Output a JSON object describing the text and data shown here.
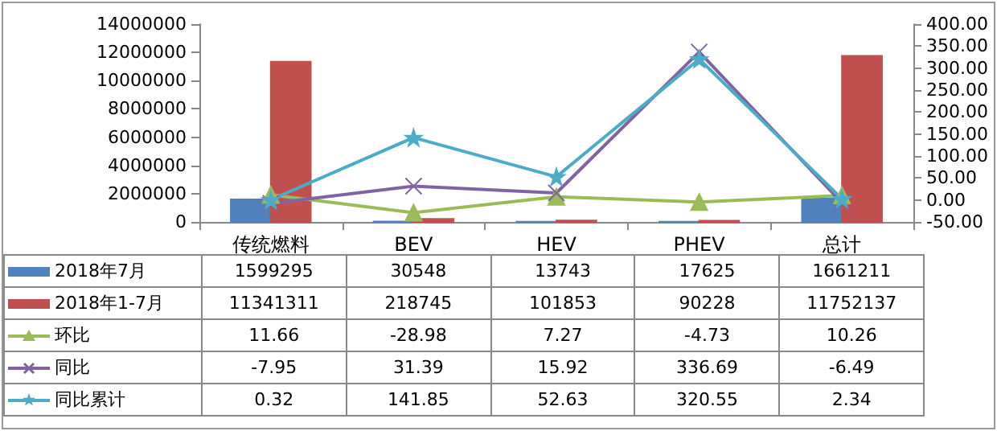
{
  "chart_data": {
    "type": "bar",
    "categories": [
      "传统燃料",
      "BEV",
      "HEV",
      "PHEV",
      "总计"
    ],
    "series": [
      {
        "name": "2018年7月",
        "color": "#4f81bd",
        "values": [
          1599295,
          30548,
          13743,
          17625,
          1661211
        ]
      },
      {
        "name": "2018年1-7月",
        "color": "#c0504d",
        "values": [
          11341311,
          218745,
          101853,
          90228,
          11752137
        ]
      },
      {
        "name": "环比",
        "type": "line",
        "axis": "y2",
        "color": "#9bbb59",
        "marker": "triangle",
        "values": [
          11.66,
          -28.98,
          7.27,
          -4.73,
          10.26
        ]
      },
      {
        "name": "同比",
        "type": "line",
        "axis": "y2",
        "color": "#8064a2",
        "marker": "cross",
        "values": [
          -7.95,
          31.39,
          15.92,
          336.69,
          -6.49
        ]
      },
      {
        "name": "同比累计",
        "type": "line",
        "axis": "y2",
        "color": "#4bacc6",
        "marker": "star",
        "values": [
          0.32,
          141.85,
          52.63,
          320.55,
          2.34
        ]
      }
    ],
    "ylim": [
      0,
      14000000
    ],
    "yticks": [
      0,
      2000000,
      4000000,
      6000000,
      8000000,
      10000000,
      12000000,
      14000000
    ],
    "y2lim": [
      -50,
      400
    ],
    "y2ticks": [
      {
        "value": -50,
        "label": "-50.00"
      },
      {
        "value": 0,
        "label": "0.00"
      },
      {
        "value": 50,
        "label": "50.00"
      },
      {
        "value": 100,
        "label": "100.00"
      },
      {
        "value": 150,
        "label": "150.00"
      },
      {
        "value": 200,
        "label": "200.00"
      },
      {
        "value": 250,
        "label": "250.00"
      },
      {
        "value": 300,
        "label": "300.00"
      },
      {
        "value": 350,
        "label": "350.00"
      },
      {
        "value": 400,
        "label": "400.00"
      }
    ],
    "data_labels": true,
    "legend": "bottom left",
    "grid": false
  }
}
